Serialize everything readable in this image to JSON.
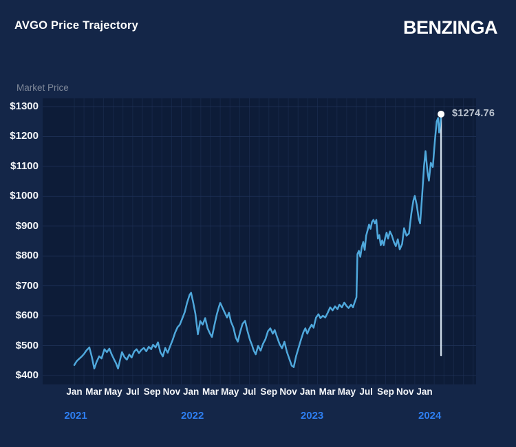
{
  "header": {
    "title": "AVGO Price Trajectory",
    "brand": "BENZINGA"
  },
  "colors": {
    "page_bg": "#142648",
    "plot_bg": "#0d1c38",
    "gridline": "#1e3156",
    "line": "#4fa8dc",
    "year_label": "#2e7ef0",
    "tick_label": "#f2f4f7",
    "axis_title": "#7e8798",
    "annotation_text": "#bac2ce",
    "marker": "#ffffff",
    "dropline": "#d9e7f3"
  },
  "chart_data": {
    "type": "line",
    "title": "AVGO Price Trajectory",
    "xlabel": "",
    "ylabel": "Market Price",
    "x_unit": "months since Jan 2021",
    "ylim": [
      370,
      1330
    ],
    "xlim": [
      -3.3,
      41.3
    ],
    "grid": {
      "horizontal": "every $100",
      "vertical": "monthly"
    },
    "y_ticks": [
      {
        "v": 400,
        "label": "$400"
      },
      {
        "v": 500,
        "label": "$500"
      },
      {
        "v": 600,
        "label": "$600"
      },
      {
        "v": 700,
        "label": "$700"
      },
      {
        "v": 800,
        "label": "$800"
      },
      {
        "v": 900,
        "label": "$900"
      },
      {
        "v": 1000,
        "label": "$1000"
      },
      {
        "v": 1100,
        "label": "$1100"
      },
      {
        "v": 1200,
        "label": "$1200"
      },
      {
        "v": 1300,
        "label": "$1300"
      }
    ],
    "x_ticks": [
      {
        "m": 0,
        "label": "Jan"
      },
      {
        "m": 2,
        "label": "Mar"
      },
      {
        "m": 4,
        "label": "May"
      },
      {
        "m": 6,
        "label": "Jul"
      },
      {
        "m": 8,
        "label": "Sep"
      },
      {
        "m": 10,
        "label": "Nov"
      },
      {
        "m": 12,
        "label": "Jan"
      },
      {
        "m": 14,
        "label": "Mar"
      },
      {
        "m": 16,
        "label": "May"
      },
      {
        "m": 18,
        "label": "Jul"
      },
      {
        "m": 20,
        "label": "Sep"
      },
      {
        "m": 22,
        "label": "Nov"
      },
      {
        "m": 24,
        "label": "Jan"
      },
      {
        "m": 26,
        "label": "Mar"
      },
      {
        "m": 28,
        "label": "May"
      },
      {
        "m": 30,
        "label": "Jul"
      },
      {
        "m": 32,
        "label": "Sep"
      },
      {
        "m": 34,
        "label": "Nov"
      },
      {
        "m": 36,
        "label": "Jan"
      }
    ],
    "year_ticks": [
      {
        "m": 0,
        "label": "2021"
      },
      {
        "m": 12,
        "label": "2022"
      },
      {
        "m": 24.3,
        "label": "2023"
      },
      {
        "m": 36.4,
        "label": "2024"
      }
    ],
    "annotation": {
      "text": "$1274.76",
      "value": 1274.76,
      "month": 37.7,
      "dropline_to_value": 467
    },
    "series": [
      {
        "name": "AVGO",
        "points": [
          [
            0.0,
            435
          ],
          [
            0.25,
            448
          ],
          [
            0.5,
            456
          ],
          [
            0.75,
            463
          ],
          [
            1.0,
            472
          ],
          [
            1.25,
            484
          ],
          [
            1.55,
            494
          ],
          [
            1.8,
            462
          ],
          [
            2.05,
            423
          ],
          [
            2.3,
            446
          ],
          [
            2.55,
            464
          ],
          [
            2.8,
            457
          ],
          [
            3.1,
            488
          ],
          [
            3.35,
            478
          ],
          [
            3.6,
            490
          ],
          [
            3.85,
            470
          ],
          [
            4.1,
            453
          ],
          [
            4.3,
            440
          ],
          [
            4.5,
            423
          ],
          [
            4.7,
            452
          ],
          [
            4.9,
            478
          ],
          [
            5.15,
            462
          ],
          [
            5.4,
            453
          ],
          [
            5.65,
            470
          ],
          [
            5.9,
            460
          ],
          [
            6.15,
            480
          ],
          [
            6.4,
            488
          ],
          [
            6.65,
            475
          ],
          [
            6.9,
            486
          ],
          [
            7.15,
            492
          ],
          [
            7.4,
            481
          ],
          [
            7.65,
            496
          ],
          [
            7.9,
            488
          ],
          [
            8.1,
            503
          ],
          [
            8.35,
            494
          ],
          [
            8.6,
            511
          ],
          [
            8.85,
            478
          ],
          [
            9.1,
            464
          ],
          [
            9.35,
            492
          ],
          [
            9.6,
            476
          ],
          [
            9.85,
            498
          ],
          [
            10.1,
            518
          ],
          [
            10.35,
            542
          ],
          [
            10.6,
            561
          ],
          [
            10.85,
            570
          ],
          [
            11.1,
            591
          ],
          [
            11.35,
            612
          ],
          [
            11.6,
            644
          ],
          [
            11.85,
            670
          ],
          [
            12.0,
            677
          ],
          [
            12.2,
            648
          ],
          [
            12.45,
            607
          ],
          [
            12.7,
            538
          ],
          [
            12.95,
            582
          ],
          [
            13.2,
            570
          ],
          [
            13.45,
            592
          ],
          [
            13.7,
            558
          ],
          [
            13.95,
            540
          ],
          [
            14.15,
            529
          ],
          [
            14.4,
            568
          ],
          [
            14.65,
            605
          ],
          [
            14.85,
            628
          ],
          [
            15.0,
            643
          ],
          [
            15.2,
            629
          ],
          [
            15.45,
            611
          ],
          [
            15.7,
            594
          ],
          [
            15.9,
            610
          ],
          [
            16.1,
            580
          ],
          [
            16.35,
            561
          ],
          [
            16.6,
            527
          ],
          [
            16.8,
            513
          ],
          [
            17.05,
            546
          ],
          [
            17.3,
            573
          ],
          [
            17.55,
            583
          ],
          [
            17.8,
            549
          ],
          [
            18.05,
            520
          ],
          [
            18.25,
            503
          ],
          [
            18.45,
            483
          ],
          [
            18.65,
            471
          ],
          [
            18.9,
            499
          ],
          [
            19.15,
            483
          ],
          [
            19.4,
            506
          ],
          [
            19.65,
            522
          ],
          [
            19.9,
            548
          ],
          [
            20.15,
            558
          ],
          [
            20.4,
            540
          ],
          [
            20.6,
            552
          ],
          [
            20.85,
            528
          ],
          [
            21.1,
            505
          ],
          [
            21.35,
            491
          ],
          [
            21.6,
            513
          ],
          [
            21.85,
            479
          ],
          [
            22.1,
            456
          ],
          [
            22.35,
            433
          ],
          [
            22.55,
            428
          ],
          [
            22.8,
            465
          ],
          [
            23.05,
            492
          ],
          [
            23.3,
            520
          ],
          [
            23.55,
            545
          ],
          [
            23.75,
            558
          ],
          [
            23.95,
            540
          ],
          [
            24.15,
            556
          ],
          [
            24.4,
            570
          ],
          [
            24.6,
            560
          ],
          [
            24.85,
            594
          ],
          [
            25.1,
            605
          ],
          [
            25.3,
            592
          ],
          [
            25.55,
            600
          ],
          [
            25.8,
            594
          ],
          [
            26.05,
            610
          ],
          [
            26.3,
            628
          ],
          [
            26.55,
            618
          ],
          [
            26.8,
            631
          ],
          [
            27.05,
            622
          ],
          [
            27.25,
            637
          ],
          [
            27.5,
            628
          ],
          [
            27.75,
            644
          ],
          [
            28.0,
            632
          ],
          [
            28.2,
            626
          ],
          [
            28.45,
            637
          ],
          [
            28.65,
            628
          ],
          [
            28.85,
            648
          ],
          [
            29.0,
            662
          ],
          [
            29.1,
            806
          ],
          [
            29.25,
            817
          ],
          [
            29.4,
            797
          ],
          [
            29.55,
            829
          ],
          [
            29.7,
            847
          ],
          [
            29.85,
            820
          ],
          [
            30.0,
            868
          ],
          [
            30.15,
            886
          ],
          [
            30.3,
            905
          ],
          [
            30.45,
            891
          ],
          [
            30.6,
            914
          ],
          [
            30.75,
            921
          ],
          [
            30.9,
            909
          ],
          [
            31.05,
            921
          ],
          [
            31.2,
            858
          ],
          [
            31.35,
            870
          ],
          [
            31.5,
            836
          ],
          [
            31.65,
            852
          ],
          [
            31.8,
            836
          ],
          [
            31.95,
            860
          ],
          [
            32.1,
            878
          ],
          [
            32.25,
            858
          ],
          [
            32.45,
            882
          ],
          [
            32.65,
            868
          ],
          [
            32.85,
            847
          ],
          [
            33.05,
            833
          ],
          [
            33.25,
            856
          ],
          [
            33.45,
            822
          ],
          [
            33.7,
            840
          ],
          [
            33.9,
            893
          ],
          [
            34.15,
            868
          ],
          [
            34.4,
            875
          ],
          [
            34.65,
            944
          ],
          [
            34.85,
            985
          ],
          [
            35.0,
            1001
          ],
          [
            35.2,
            971
          ],
          [
            35.4,
            925
          ],
          [
            35.55,
            909
          ],
          [
            35.75,
            1000
          ],
          [
            35.95,
            1100
          ],
          [
            36.1,
            1151
          ],
          [
            36.3,
            1082
          ],
          [
            36.45,
            1052
          ],
          [
            36.65,
            1112
          ],
          [
            36.85,
            1098
          ],
          [
            37.05,
            1180
          ],
          [
            37.25,
            1250
          ],
          [
            37.4,
            1262
          ],
          [
            37.5,
            1213
          ],
          [
            37.6,
            1236
          ],
          [
            37.7,
            1274.76
          ]
        ]
      }
    ]
  }
}
